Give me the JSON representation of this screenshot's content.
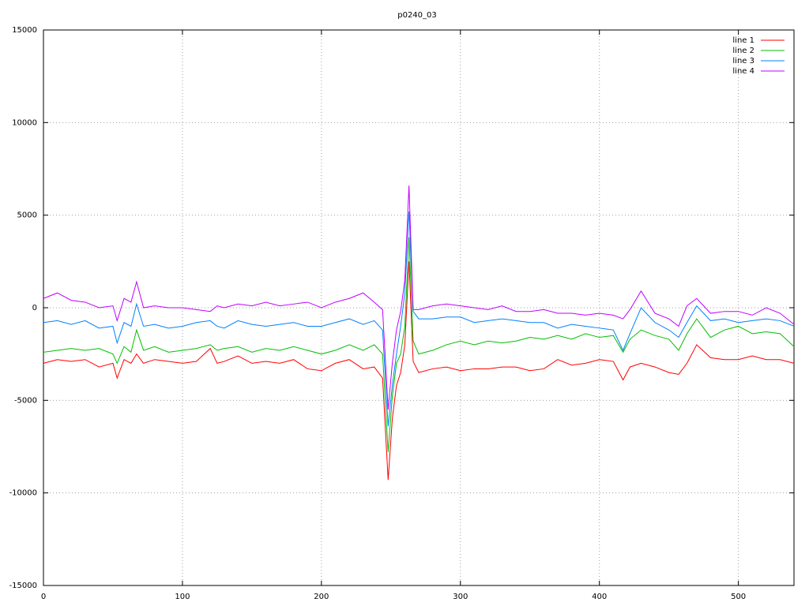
{
  "chart_data": {
    "type": "line",
    "title": "p0240_03",
    "x": [
      0,
      10,
      20,
      30,
      40,
      50,
      53,
      58,
      63,
      67,
      72,
      80,
      90,
      100,
      110,
      120,
      125,
      130,
      140,
      150,
      160,
      170,
      180,
      190,
      200,
      210,
      220,
      230,
      238,
      244,
      248,
      251,
      254,
      257,
      260,
      263,
      266,
      270,
      280,
      290,
      300,
      310,
      320,
      330,
      340,
      350,
      360,
      370,
      380,
      390,
      400,
      410,
      417,
      422,
      430,
      440,
      450,
      457,
      463,
      470,
      480,
      490,
      500,
      510,
      520,
      530,
      540
    ],
    "series": [
      {
        "name": "line 1",
        "color": "#ff0000",
        "values": [
          -3000,
          -2800,
          -2900,
          -2800,
          -3200,
          -3000,
          -3800,
          -2800,
          -3000,
          -2500,
          -3000,
          -2800,
          -2900,
          -3000,
          -2900,
          -2200,
          -3000,
          -2900,
          -2600,
          -3000,
          -2900,
          -3000,
          -2800,
          -3300,
          -3400,
          -3000,
          -2800,
          -3300,
          -3200,
          -3800,
          -9300,
          -6000,
          -4200,
          -3500,
          -2000,
          2500,
          -2900,
          -3500,
          -3300,
          -3200,
          -3400,
          -3300,
          -3300,
          -3200,
          -3200,
          -3400,
          -3300,
          -2800,
          -3100,
          -3000,
          -2800,
          -2900,
          -3900,
          -3200,
          -3000,
          -3200,
          -3500,
          -3600,
          -3000,
          -2000,
          -2700,
          -2800,
          -2800,
          -2600,
          -2800,
          -2800,
          -3000
        ]
      },
      {
        "name": "line 2",
        "color": "#00c000",
        "values": [
          -2400,
          -2300,
          -2200,
          -2300,
          -2200,
          -2500,
          -3000,
          -2100,
          -2400,
          -1200,
          -2300,
          -2100,
          -2400,
          -2300,
          -2200,
          -2000,
          -2300,
          -2200,
          -2100,
          -2400,
          -2200,
          -2300,
          -2100,
          -2300,
          -2500,
          -2300,
          -2000,
          -2300,
          -2000,
          -2500,
          -7800,
          -4800,
          -3000,
          -2500,
          -1000,
          3800,
          -1800,
          -2500,
          -2300,
          -2000,
          -1800,
          -2000,
          -1800,
          -1900,
          -1800,
          -1600,
          -1700,
          -1500,
          -1700,
          -1400,
          -1600,
          -1500,
          -2400,
          -1700,
          -1200,
          -1500,
          -1700,
          -2300,
          -1400,
          -600,
          -1600,
          -1200,
          -1000,
          -1400,
          -1300,
          -1400,
          -2100
        ]
      },
      {
        "name": "line 3",
        "color": "#0080ff",
        "values": [
          -800,
          -700,
          -900,
          -700,
          -1100,
          -1000,
          -1900,
          -800,
          -1000,
          200,
          -1000,
          -900,
          -1100,
          -1000,
          -800,
          -700,
          -1000,
          -1100,
          -700,
          -900,
          -1000,
          -900,
          -800,
          -1000,
          -1000,
          -800,
          -600,
          -900,
          -700,
          -1200,
          -6400,
          -4200,
          -2500,
          -1000,
          800,
          5200,
          -200,
          -600,
          -600,
          -500,
          -500,
          -800,
          -700,
          -600,
          -700,
          -800,
          -800,
          -1100,
          -900,
          -1000,
          -1100,
          -1200,
          -2300,
          -1400,
          0,
          -800,
          -1200,
          -1600,
          -800,
          100,
          -700,
          -600,
          -800,
          -700,
          -600,
          -700,
          -1000
        ]
      },
      {
        "name": "line 4",
        "color": "#c000ff",
        "values": [
          500,
          800,
          400,
          300,
          0,
          100,
          -700,
          500,
          300,
          1400,
          0,
          100,
          0,
          0,
          -100,
          -200,
          100,
          0,
          200,
          100,
          300,
          100,
          200,
          300,
          0,
          300,
          500,
          800,
          300,
          -100,
          -5500,
          -3000,
          -1200,
          -200,
          1500,
          6600,
          -100,
          -100,
          100,
          200,
          100,
          0,
          -100,
          100,
          -200,
          -200,
          -100,
          -300,
          -300,
          -400,
          -300,
          -400,
          -600,
          -100,
          900,
          -300,
          -600,
          -1000,
          100,
          500,
          -300,
          -200,
          -200,
          -400,
          0,
          -300,
          -900
        ]
      }
    ],
    "xlim": [
      0,
      540
    ],
    "xticks": [
      0,
      100,
      200,
      300,
      400,
      500
    ],
    "ylim": [
      -15000,
      15000
    ],
    "yticks": [
      -15000,
      -10000,
      -5000,
      0,
      5000,
      10000,
      15000
    ],
    "grid": true,
    "legend": "top-right"
  }
}
